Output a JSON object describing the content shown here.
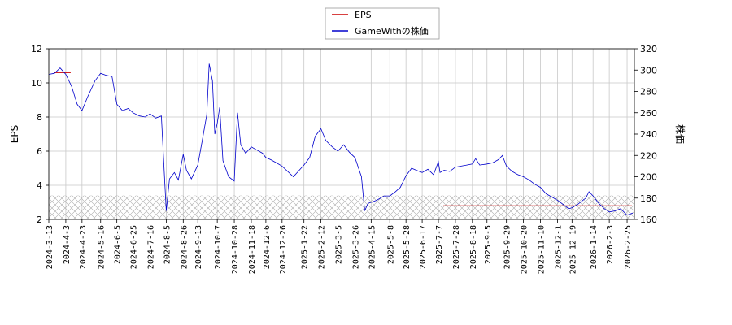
{
  "chart_data": {
    "type": "line",
    "legend": {
      "placement": "top-center",
      "entries": [
        "EPS",
        "GameWithの株価"
      ]
    },
    "y_left": {
      "label": "EPS",
      "lim": [
        2,
        12
      ],
      "ticks": [
        2,
        4,
        6,
        8,
        10,
        12
      ]
    },
    "y_right": {
      "label": "株価",
      "lim": [
        160,
        320
      ],
      "ticks": [
        160,
        180,
        200,
        220,
        240,
        260,
        280,
        300,
        320
      ]
    },
    "x_ticks": [
      "2024-3-13",
      "2024-4-3",
      "2024-4-23",
      "2024-5-16",
      "2024-6-5",
      "2024-6-25",
      "2024-7-16",
      "2024-8-5",
      "2024-8-26",
      "2024-9-13",
      "2024-10-7",
      "2024-10-28",
      "2024-11-18",
      "2024-12-6",
      "2024-12-26",
      "2025-1-22",
      "2025-2-12",
      "2025-3-5",
      "2025-3-26",
      "2025-4-15",
      "2025-5-8",
      "2025-5-28",
      "2025-6-17",
      "2025-7-7",
      "2025-7-28",
      "2025-8-18",
      "2025-9-5",
      "2025-9-29",
      "2025-10-20",
      "2025-11-10",
      "2025-12-1",
      "2025-12-19",
      "2026-1-14",
      "2026-2-3",
      "2026-2-25"
    ],
    "grid": true,
    "eps_series": {
      "name": "EPS",
      "color": "#cc0000",
      "segments": [
        {
          "from": "2024-3-13",
          "to": "2024-4-3",
          "value": 10.6
        },
        {
          "from": "2025-7-7",
          "to": "2026-2-25",
          "value": 2.8
        }
      ]
    },
    "hatched_band": {
      "axis": "left",
      "from": 2,
      "to": 3.4
    },
    "price_series": {
      "name": "GameWithの株価",
      "color": "#0000cc",
      "points": [
        [
          "2024-3-13",
          296
        ],
        [
          "2024-3-20",
          297
        ],
        [
          "2024-3-27",
          302
        ],
        [
          "2024-4-3",
          296
        ],
        [
          "2024-4-10",
          285
        ],
        [
          "2024-4-17",
          268
        ],
        [
          "2024-4-23",
          262
        ],
        [
          "2024-4-30",
          275
        ],
        [
          "2024-5-9",
          290
        ],
        [
          "2024-5-16",
          297
        ],
        [
          "2024-5-23",
          295
        ],
        [
          "2024-5-30",
          294
        ],
        [
          "2024-6-5",
          268
        ],
        [
          "2024-6-12",
          262
        ],
        [
          "2024-6-19",
          264
        ],
        [
          "2024-6-25",
          260
        ],
        [
          "2024-7-3",
          257
        ],
        [
          "2024-7-10",
          256
        ],
        [
          "2024-7-16",
          259
        ],
        [
          "2024-7-23",
          255
        ],
        [
          "2024-7-30",
          257
        ],
        [
          "2024-8-5",
          168
        ],
        [
          "2024-8-9",
          198
        ],
        [
          "2024-8-15",
          204
        ],
        [
          "2024-8-20",
          197
        ],
        [
          "2024-8-26",
          221
        ],
        [
          "2024-8-30",
          206
        ],
        [
          "2024-9-5",
          198
        ],
        [
          "2024-9-13",
          211
        ],
        [
          "2024-9-18",
          232
        ],
        [
          "2024-9-24",
          258
        ],
        [
          "2024-9-27",
          306
        ],
        [
          "2024-10-1",
          290
        ],
        [
          "2024-10-4",
          240
        ],
        [
          "2024-10-7",
          250
        ],
        [
          "2024-10-10",
          265
        ],
        [
          "2024-10-14",
          215
        ],
        [
          "2024-10-21",
          200
        ],
        [
          "2024-10-28",
          196
        ],
        [
          "2024-11-1",
          260
        ],
        [
          "2024-11-5",
          230
        ],
        [
          "2024-11-11",
          222
        ],
        [
          "2024-11-18",
          228
        ],
        [
          "2024-11-25",
          225
        ],
        [
          "2024-12-2",
          222
        ],
        [
          "2024-12-6",
          218
        ],
        [
          "2024-12-12",
          216
        ],
        [
          "2024-12-19",
          213
        ],
        [
          "2024-12-26",
          210
        ],
        [
          "2025-1-9",
          200
        ],
        [
          "2025-1-15",
          205
        ],
        [
          "2025-1-22",
          211
        ],
        [
          "2025-1-29",
          218
        ],
        [
          "2025-2-5",
          238
        ],
        [
          "2025-2-12",
          245
        ],
        [
          "2025-2-18",
          234
        ],
        [
          "2025-2-26",
          228
        ],
        [
          "2025-3-5",
          224
        ],
        [
          "2025-3-12",
          230
        ],
        [
          "2025-3-19",
          223
        ],
        [
          "2025-3-26",
          218
        ],
        [
          "2025-4-3",
          200
        ],
        [
          "2025-4-7",
          168
        ],
        [
          "2025-4-11",
          175
        ],
        [
          "2025-4-15",
          176
        ],
        [
          "2025-4-22",
          178
        ],
        [
          "2025-5-1",
          182
        ],
        [
          "2025-5-8",
          182
        ],
        [
          "2025-5-15",
          186
        ],
        [
          "2025-5-21",
          190
        ],
        [
          "2025-5-28",
          201
        ],
        [
          "2025-6-4",
          208
        ],
        [
          "2025-6-10",
          206
        ],
        [
          "2025-6-17",
          204
        ],
        [
          "2025-6-24",
          207
        ],
        [
          "2025-7-1",
          202
        ],
        [
          "2025-7-7",
          214
        ],
        [
          "2025-7-9",
          204
        ],
        [
          "2025-7-14",
          206
        ],
        [
          "2025-7-21",
          205
        ],
        [
          "2025-7-28",
          209
        ],
        [
          "2025-8-4",
          210
        ],
        [
          "2025-8-11",
          211
        ],
        [
          "2025-8-18",
          212
        ],
        [
          "2025-8-22",
          217
        ],
        [
          "2025-8-27",
          211
        ],
        [
          "2025-9-5",
          212
        ],
        [
          "2025-9-12",
          213
        ],
        [
          "2025-9-19",
          216
        ],
        [
          "2025-9-24",
          220
        ],
        [
          "2025-9-29",
          210
        ],
        [
          "2025-10-6",
          205
        ],
        [
          "2025-10-13",
          202
        ],
        [
          "2025-10-20",
          200
        ],
        [
          "2025-10-27",
          197
        ],
        [
          "2025-11-3",
          193
        ],
        [
          "2025-11-10",
          190
        ],
        [
          "2025-11-17",
          184
        ],
        [
          "2025-11-24",
          181
        ],
        [
          "2025-12-1",
          178
        ],
        [
          "2025-12-8",
          174
        ],
        [
          "2025-12-15",
          170
        ],
        [
          "2025-12-19",
          171
        ],
        [
          "2025-12-26",
          174
        ],
        [
          "2026-1-5",
          180
        ],
        [
          "2026-1-9",
          186
        ],
        [
          "2026-1-14",
          182
        ],
        [
          "2026-1-21",
          175
        ],
        [
          "2026-1-28",
          170
        ],
        [
          "2026-2-3",
          167
        ],
        [
          "2026-2-10",
          168
        ],
        [
          "2026-2-17",
          170
        ],
        [
          "2026-2-25",
          164
        ],
        [
          "2026-3-4",
          166
        ]
      ]
    }
  }
}
